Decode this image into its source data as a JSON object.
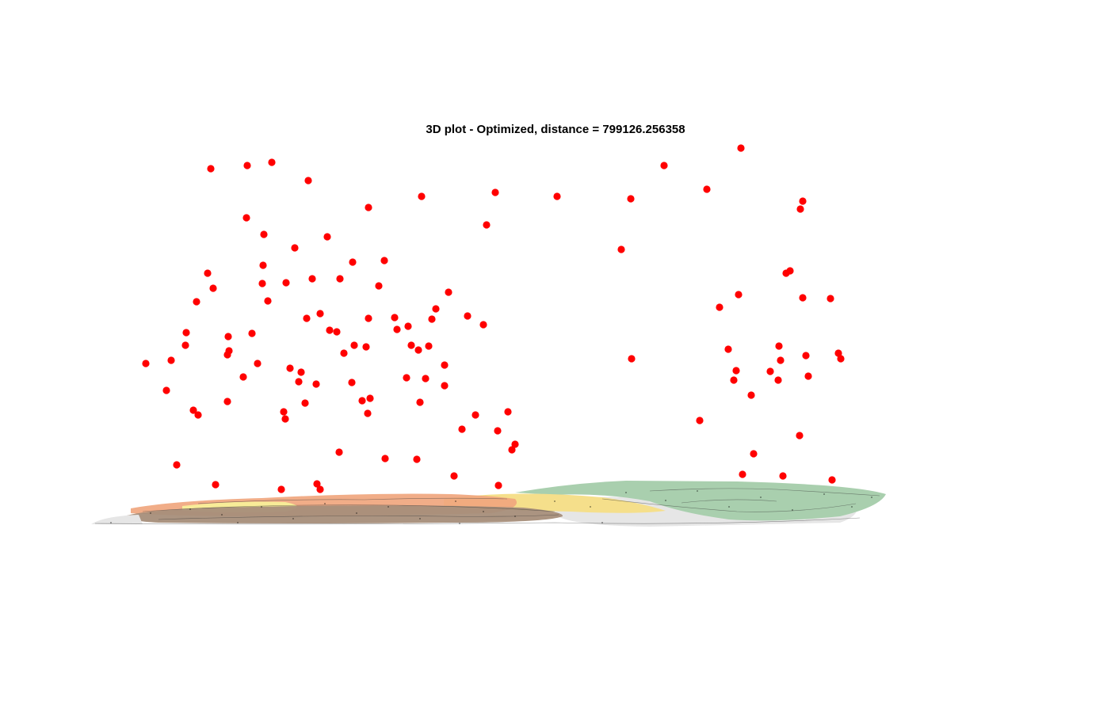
{
  "chart_data": {
    "type": "scatter",
    "title": "3D plot - Optimized, distance = 799126.256358",
    "axes_visible": false,
    "grid": false,
    "legend": "none",
    "marker_color": "#ff0000",
    "base_map_colors": [
      "#a9cfae",
      "#f5df8b",
      "#f0a67e",
      "#a68e7a",
      "#e6e6e6",
      "#f8f39a"
    ],
    "points": [
      [
        184,
        459
      ],
      [
        216,
        455
      ],
      [
        210,
        493
      ],
      [
        235,
        420
      ],
      [
        234,
        436
      ],
      [
        248,
        381
      ],
      [
        244,
        518
      ],
      [
        250,
        524
      ],
      [
        223,
        587
      ],
      [
        272,
        612
      ],
      [
        266,
        213
      ],
      [
        312,
        209
      ],
      [
        343,
        205
      ],
      [
        389,
        228
      ],
      [
        311,
        275
      ],
      [
        262,
        345
      ],
      [
        269,
        364
      ],
      [
        333,
        296
      ],
      [
        332,
        335
      ],
      [
        331,
        358
      ],
      [
        338,
        380
      ],
      [
        361,
        357
      ],
      [
        372,
        313
      ],
      [
        413,
        299
      ],
      [
        394,
        352
      ],
      [
        387,
        402
      ],
      [
        404,
        396
      ],
      [
        288,
        425
      ],
      [
        289,
        443
      ],
      [
        287,
        448
      ],
      [
        318,
        421
      ],
      [
        325,
        459
      ],
      [
        307,
        476
      ],
      [
        287,
        507
      ],
      [
        366,
        465
      ],
      [
        380,
        470
      ],
      [
        377,
        482
      ],
      [
        399,
        485
      ],
      [
        385,
        509
      ],
      [
        358,
        520
      ],
      [
        360,
        529
      ],
      [
        416,
        417
      ],
      [
        425,
        419
      ],
      [
        434,
        446
      ],
      [
        429,
        352
      ],
      [
        445,
        331
      ],
      [
        447,
        436
      ],
      [
        462,
        438
      ],
      [
        465,
        262
      ],
      [
        485,
        329
      ],
      [
        478,
        361
      ],
      [
        465,
        402
      ],
      [
        444,
        483
      ],
      [
        457,
        506
      ],
      [
        467,
        503
      ],
      [
        464,
        522
      ],
      [
        428,
        571
      ],
      [
        486,
        579
      ],
      [
        526,
        580
      ],
      [
        400,
        611
      ],
      [
        404,
        618
      ],
      [
        355,
        618
      ],
      [
        498,
        401
      ],
      [
        501,
        416
      ],
      [
        515,
        412
      ],
      [
        519,
        436
      ],
      [
        528,
        442
      ],
      [
        541,
        437
      ],
      [
        513,
        477
      ],
      [
        537,
        478
      ],
      [
        530,
        508
      ],
      [
        545,
        403
      ],
      [
        550,
        390
      ],
      [
        566,
        369
      ],
      [
        561,
        461
      ],
      [
        561,
        487
      ],
      [
        532,
        248
      ],
      [
        590,
        399
      ],
      [
        610,
        410
      ],
      [
        600,
        524
      ],
      [
        583,
        542
      ],
      [
        628,
        544
      ],
      [
        641,
        520
      ],
      [
        650,
        561
      ],
      [
        646,
        568
      ],
      [
        573,
        601
      ],
      [
        629,
        613
      ],
      [
        614,
        284
      ],
      [
        625,
        243
      ],
      [
        703,
        248
      ],
      [
        796,
        251
      ],
      [
        784,
        315
      ],
      [
        797,
        453
      ],
      [
        838,
        209
      ],
      [
        892,
        239
      ],
      [
        935,
        187
      ],
      [
        1013,
        254
      ],
      [
        1010,
        264
      ],
      [
        992,
        345
      ],
      [
        997,
        342
      ],
      [
        932,
        372
      ],
      [
        908,
        388
      ],
      [
        1013,
        376
      ],
      [
        1048,
        377
      ],
      [
        919,
        441
      ],
      [
        929,
        468
      ],
      [
        926,
        480
      ],
      [
        948,
        499
      ],
      [
        972,
        469
      ],
      [
        983,
        437
      ],
      [
        985,
        455
      ],
      [
        982,
        480
      ],
      [
        1017,
        449
      ],
      [
        1020,
        475
      ],
      [
        1058,
        446
      ],
      [
        1061,
        453
      ],
      [
        883,
        531
      ],
      [
        1009,
        550
      ],
      [
        951,
        573
      ],
      [
        937,
        599
      ],
      [
        988,
        601
      ],
      [
        1050,
        606
      ]
    ]
  }
}
